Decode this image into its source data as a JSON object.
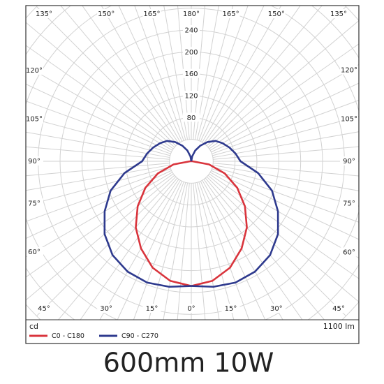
{
  "chart_data": {
    "type": "polar",
    "title": "600mm 10W",
    "unit_label": "cd",
    "flux_label": "1100 lm",
    "angles": [
      0,
      10,
      20,
      30,
      40,
      50,
      60,
      70,
      80,
      90,
      100,
      110,
      120,
      130,
      140,
      150,
      160,
      170,
      180
    ],
    "series": [
      {
        "name": "C0 - C180",
        "color": "#d9343c",
        "values": [
          228,
          222,
          207,
          184,
          158,
          128,
          97,
          65,
          33,
          2,
          0,
          0,
          0,
          0,
          0,
          0,
          0,
          0,
          0
        ]
      },
      {
        "name": "C90 - C270",
        "color": "#2e3a8e",
        "values": [
          228,
          233,
          236,
          233,
          224,
          207,
          183,
          157,
          124,
          90,
          82,
          74,
          66,
          58,
          46,
          33,
          21,
          9,
          0
        ]
      }
    ],
    "rlim": [
      0,
      400
    ],
    "rticks": [
      {
        "value": 40,
        "label": null
      },
      80,
      120,
      160,
      200,
      240,
      {
        "value": 280,
        "label": null
      },
      {
        "value": 320,
        "label": null
      },
      {
        "value": 360,
        "label": null
      },
      {
        "value": 400,
        "label": null
      }
    ],
    "angle_ticks": [
      {
        "value": 0,
        "label": "0°"
      },
      {
        "value": 15,
        "label": "15°"
      },
      {
        "value": 30,
        "label": "30°"
      },
      {
        "value": 45,
        "label": "45°"
      },
      {
        "value": 60,
        "label": "60°"
      },
      {
        "value": 75,
        "label": "75°"
      },
      {
        "value": 90,
        "label": "90°"
      },
      {
        "value": 105,
        "label": "105°"
      },
      {
        "value": 120,
        "label": "120°"
      },
      {
        "value": 135,
        "label": "135°"
      },
      {
        "value": 150,
        "label": "150°"
      },
      {
        "value": 165,
        "label": "165°"
      },
      {
        "value": 180,
        "label": "180°"
      }
    ],
    "angle_grid_step": 5,
    "grid": true
  }
}
